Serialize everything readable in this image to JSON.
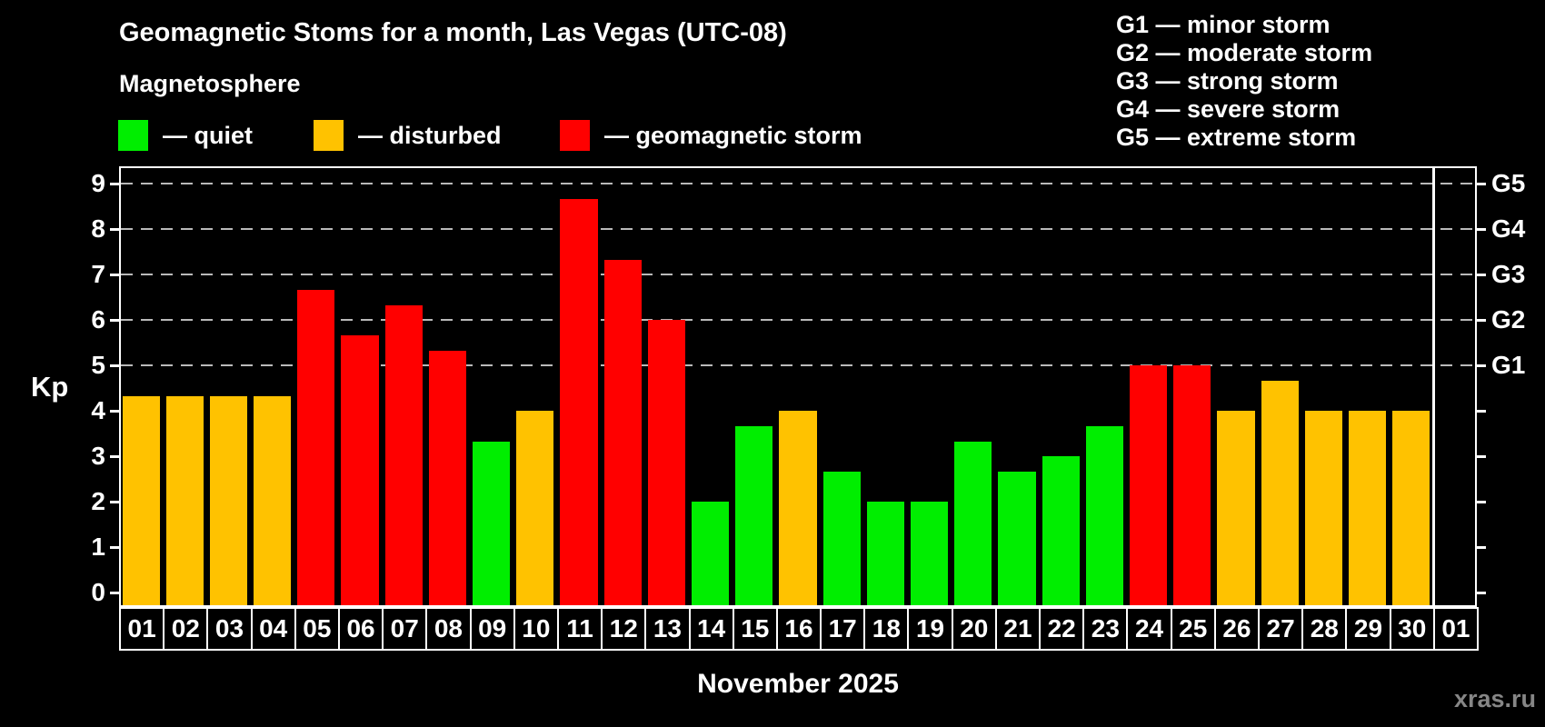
{
  "header": {
    "title": "Geomagnetic Stoms for a month, Las Vegas (UTC-08)",
    "subtitle": "Magnetosphere"
  },
  "legend": [
    {
      "key": "quiet",
      "swatch_color": "#00ee00",
      "label": "— quiet"
    },
    {
      "key": "disturbed",
      "swatch_color": "#ffc200",
      "label": "— disturbed"
    },
    {
      "key": "storm",
      "swatch_color": "#ff0000",
      "label": "— geomagnetic storm"
    }
  ],
  "g_scale_legend": [
    "G1 — minor storm",
    "G2 — moderate storm",
    "G3 — strong storm",
    "G4 — severe storm",
    "G5 — extreme storm"
  ],
  "watermark": "xras.ru",
  "chart_data": {
    "type": "bar",
    "title": "Geomagnetic Stoms for a month, Las Vegas (UTC-08)",
    "subtitle": "Magnetosphere",
    "xlabel": "November 2025",
    "ylabel": "Kp",
    "ylim": [
      0,
      9.4
    ],
    "grid": "dashed horizontal at Kp 5-9",
    "legend_position": "top-left",
    "y_ticks": [
      0,
      1,
      2,
      3,
      4,
      5,
      6,
      7,
      8,
      9
    ],
    "gridlines_at": [
      5,
      6,
      7,
      8,
      9
    ],
    "right_axis": [
      {
        "kp": 5,
        "label": "G1"
      },
      {
        "kp": 6,
        "label": "G2"
      },
      {
        "kp": 7,
        "label": "G3"
      },
      {
        "kp": 8,
        "label": "G4"
      },
      {
        "kp": 9,
        "label": "G5"
      }
    ],
    "status_colors": {
      "quiet": "#00ee00",
      "disturbed": "#ffc200",
      "storm": "#ff0000"
    },
    "categories": [
      "01",
      "02",
      "03",
      "04",
      "05",
      "06",
      "07",
      "08",
      "09",
      "10",
      "11",
      "12",
      "13",
      "14",
      "15",
      "16",
      "17",
      "18",
      "19",
      "20",
      "21",
      "22",
      "23",
      "24",
      "25",
      "26",
      "27",
      "28",
      "29",
      "30",
      "01"
    ],
    "bars": [
      {
        "day": "01",
        "kp": 4.33,
        "status": "disturbed"
      },
      {
        "day": "02",
        "kp": 4.33,
        "status": "disturbed"
      },
      {
        "day": "03",
        "kp": 4.33,
        "status": "disturbed"
      },
      {
        "day": "04",
        "kp": 4.33,
        "status": "disturbed"
      },
      {
        "day": "05",
        "kp": 6.67,
        "status": "storm"
      },
      {
        "day": "06",
        "kp": 5.67,
        "status": "storm"
      },
      {
        "day": "07",
        "kp": 6.33,
        "status": "storm"
      },
      {
        "day": "08",
        "kp": 5.33,
        "status": "storm"
      },
      {
        "day": "09",
        "kp": 3.33,
        "status": "quiet"
      },
      {
        "day": "10",
        "kp": 4.0,
        "status": "disturbed"
      },
      {
        "day": "11",
        "kp": 8.67,
        "status": "storm"
      },
      {
        "day": "12",
        "kp": 7.33,
        "status": "storm"
      },
      {
        "day": "13",
        "kp": 6.0,
        "status": "storm"
      },
      {
        "day": "14",
        "kp": 2.0,
        "status": "quiet"
      },
      {
        "day": "15",
        "kp": 3.67,
        "status": "quiet"
      },
      {
        "day": "16",
        "kp": 4.0,
        "status": "disturbed"
      },
      {
        "day": "17",
        "kp": 2.67,
        "status": "quiet"
      },
      {
        "day": "18",
        "kp": 2.0,
        "status": "quiet"
      },
      {
        "day": "19",
        "kp": 2.0,
        "status": "quiet"
      },
      {
        "day": "20",
        "kp": 3.33,
        "status": "quiet"
      },
      {
        "day": "21",
        "kp": 2.67,
        "status": "quiet"
      },
      {
        "day": "22",
        "kp": 3.0,
        "status": "quiet"
      },
      {
        "day": "23",
        "kp": 3.67,
        "status": "quiet"
      },
      {
        "day": "24",
        "kp": 5.0,
        "status": "storm"
      },
      {
        "day": "25",
        "kp": 5.0,
        "status": "storm"
      },
      {
        "day": "26",
        "kp": 4.0,
        "status": "disturbed"
      },
      {
        "day": "27",
        "kp": 4.67,
        "status": "disturbed"
      },
      {
        "day": "28",
        "kp": 4.0,
        "status": "disturbed"
      },
      {
        "day": "29",
        "kp": 4.0,
        "status": "disturbed"
      },
      {
        "day": "30",
        "kp": 4.0,
        "status": "disturbed"
      },
      {
        "day": "01",
        "kp": null,
        "status": "none"
      }
    ]
  }
}
